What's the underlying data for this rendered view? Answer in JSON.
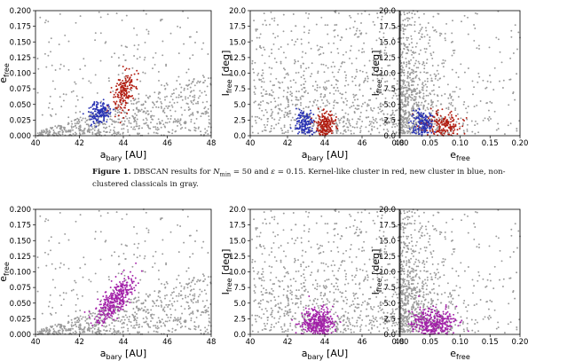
{
  "caption": {
    "label": "Figure 1.",
    "before_nmin": "DBSCAN results for ",
    "nmin_symbol": "N",
    "nmin_sub": "min",
    "nmin_value": " = 50 and ",
    "eps_symbol": "ε",
    "eps_value": " = 0.15.",
    "rest": " Kernel-like cluster in red, new cluster in blue, non-clustered classicals in gray."
  },
  "colors": {
    "gray": "#9a9a9a",
    "red": "#b21e12",
    "blue": "#2a34b4",
    "magenta": "#a220a8"
  },
  "chart_data": [
    {
      "type": "scatter",
      "row": 1,
      "col": 1,
      "x_param": "a",
      "y_param": "e",
      "xlabel": {
        "main": "a",
        "sub": "bary",
        "unit": " [AU]"
      },
      "ylabel": {
        "main": "e",
        "sub": "free",
        "unit": ""
      },
      "xlim": [
        40,
        48
      ],
      "ylim": [
        0,
        0.2
      ],
      "xticks": [
        "40",
        "42",
        "44",
        "46",
        "48"
      ],
      "yticks": [
        "0.000",
        "0.025",
        "0.050",
        "0.075",
        "0.100",
        "0.125",
        "0.150",
        "0.175",
        "0.200"
      ],
      "series": [
        {
          "name": "non-clustered classicals",
          "color": "gray",
          "n": 800
        },
        {
          "name": "kernel-like cluster",
          "color": "red",
          "n": 180
        },
        {
          "name": "new cluster",
          "color": "blue",
          "n": 150
        }
      ]
    },
    {
      "type": "scatter",
      "row": 1,
      "col": 2,
      "x_param": "a",
      "y_param": "i",
      "xlabel": {
        "main": "a",
        "sub": "bary",
        "unit": " [AU]"
      },
      "ylabel": {
        "main": "I",
        "sub": "free",
        "unit": " [deg]"
      },
      "xlim": [
        40,
        48
      ],
      "ylim": [
        0,
        20
      ],
      "xticks": [
        "40",
        "42",
        "44",
        "46",
        "48"
      ],
      "yticks": [
        "0.0",
        "2.5",
        "5.0",
        "7.5",
        "10.0",
        "12.5",
        "15.0",
        "17.5",
        "20.0"
      ],
      "series": [
        {
          "name": "non-clustered classicals",
          "color": "gray",
          "n": 800
        },
        {
          "name": "kernel-like cluster",
          "color": "red",
          "n": 180
        },
        {
          "name": "new cluster",
          "color": "blue",
          "n": 150
        }
      ]
    },
    {
      "type": "scatter",
      "row": 1,
      "col": 3,
      "x_param": "e",
      "y_param": "i",
      "xlabel": {
        "main": "e",
        "sub": "free",
        "unit": ""
      },
      "ylabel": {
        "main": "I",
        "sub": "free",
        "unit": " [deg]"
      },
      "xlim": [
        0,
        0.2
      ],
      "ylim": [
        0,
        20
      ],
      "xticks": [
        "0.00",
        "0.05",
        "0.10",
        "0.15",
        "0.20"
      ],
      "yticks": [
        "0.0",
        "2.5",
        "5.0",
        "7.5",
        "10.0",
        "12.5",
        "15.0",
        "17.5",
        "20.0"
      ],
      "series": [
        {
          "name": "non-clustered classicals",
          "color": "gray",
          "n": 800
        },
        {
          "name": "kernel-like cluster",
          "color": "red",
          "n": 180
        },
        {
          "name": "new cluster",
          "color": "blue",
          "n": 150
        }
      ]
    },
    {
      "type": "scatter",
      "row": 2,
      "col": 1,
      "x_param": "a",
      "y_param": "e",
      "xlabel": {
        "main": "a",
        "sub": "bary",
        "unit": " [AU]"
      },
      "ylabel": {
        "main": "e",
        "sub": "free",
        "unit": ""
      },
      "xlim": [
        40,
        48
      ],
      "ylim": [
        0,
        0.2
      ],
      "xticks": [
        "40",
        "42",
        "44",
        "46",
        "48"
      ],
      "yticks": [
        "0.000",
        "0.025",
        "0.050",
        "0.075",
        "0.100",
        "0.125",
        "0.150",
        "0.175",
        "0.200"
      ],
      "series": [
        {
          "name": "non-clustered classicals",
          "color": "gray",
          "n": 800
        },
        {
          "name": "cluster",
          "color": "magenta",
          "n": 330
        }
      ]
    },
    {
      "type": "scatter",
      "row": 2,
      "col": 2,
      "x_param": "a",
      "y_param": "i",
      "xlabel": {
        "main": "a",
        "sub": "bary",
        "unit": " [AU]"
      },
      "ylabel": {
        "main": "I",
        "sub": "free",
        "unit": " [deg]"
      },
      "xlim": [
        40,
        48
      ],
      "ylim": [
        0,
        20
      ],
      "xticks": [
        "40",
        "42",
        "44",
        "46",
        "48"
      ],
      "yticks": [
        "0.0",
        "2.5",
        "5.0",
        "7.5",
        "10.0",
        "12.5",
        "15.0",
        "17.5",
        "20.0"
      ],
      "series": [
        {
          "name": "non-clustered classicals",
          "color": "gray",
          "n": 800
        },
        {
          "name": "cluster",
          "color": "magenta",
          "n": 330
        }
      ]
    },
    {
      "type": "scatter",
      "row": 2,
      "col": 3,
      "x_param": "e",
      "y_param": "i",
      "xlabel": {
        "main": "e",
        "sub": "free",
        "unit": ""
      },
      "ylabel": {
        "main": "I",
        "sub": "free",
        "unit": " [deg]"
      },
      "xlim": [
        0,
        0.2
      ],
      "ylim": [
        0,
        20
      ],
      "xticks": [
        "0.00",
        "0.05",
        "0.10",
        "0.15",
        "0.20"
      ],
      "yticks": [
        "0.0",
        "2.5",
        "5.0",
        "7.5",
        "10.0",
        "12.5",
        "15.0",
        "17.5",
        "20.0"
      ],
      "series": [
        {
          "name": "non-clustered classicals",
          "color": "gray",
          "n": 800
        },
        {
          "name": "cluster",
          "color": "magenta",
          "n": 330
        }
      ]
    }
  ]
}
